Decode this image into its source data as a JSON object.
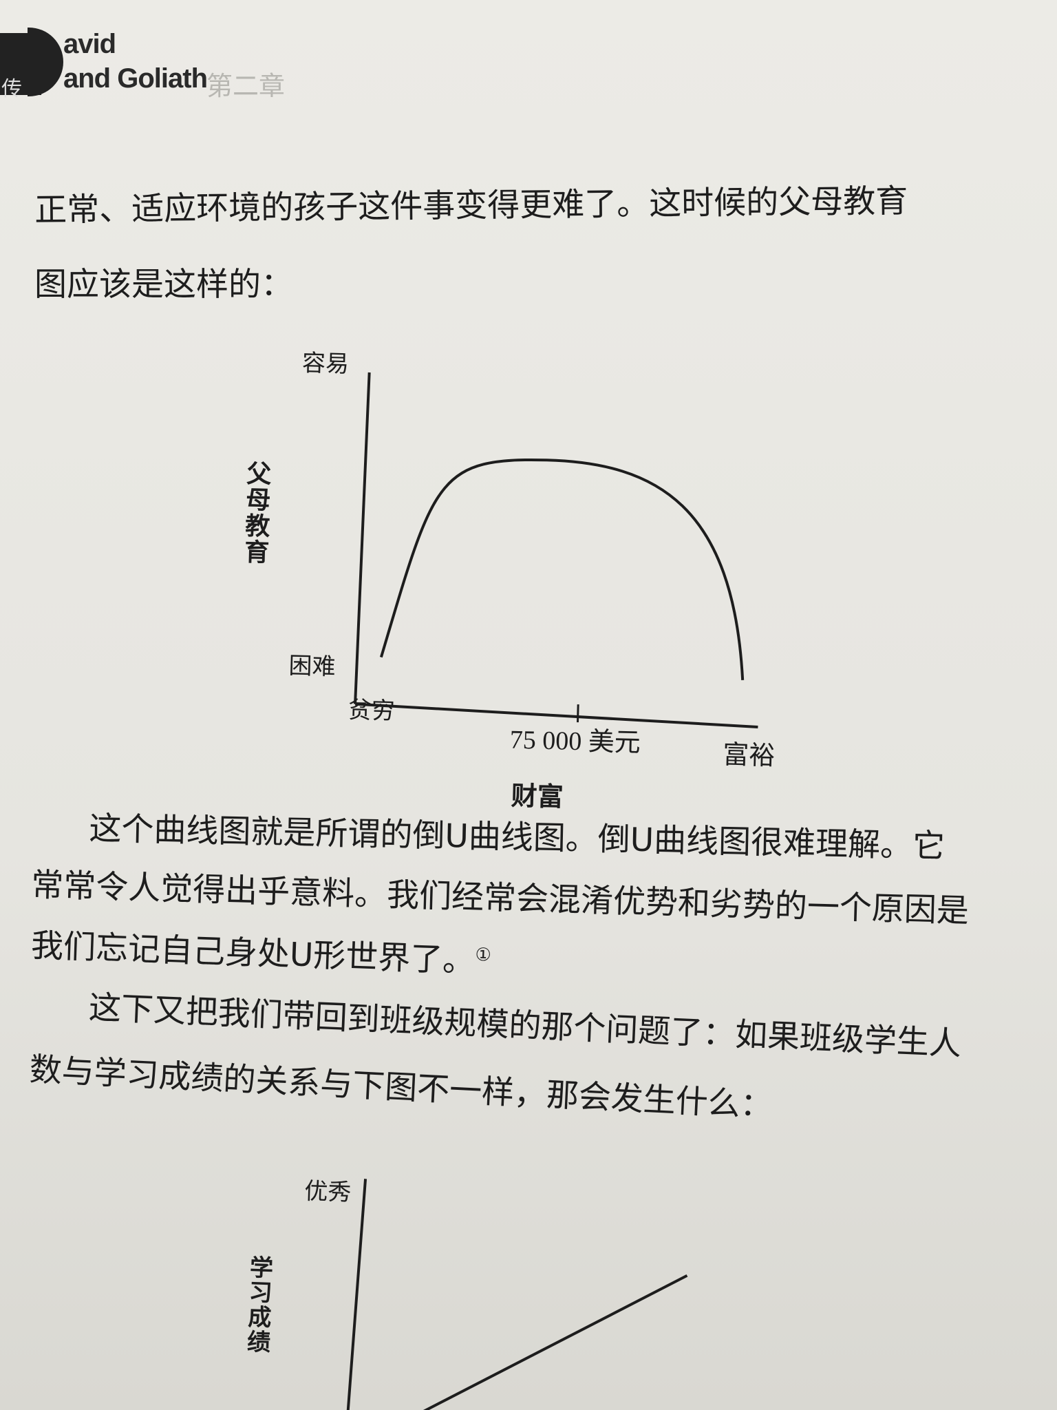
{
  "header": {
    "side_char": "传",
    "title_line1": "avid",
    "title_line2": "and Goliath",
    "chapter": "第二章"
  },
  "body": {
    "para1_line1": "正常、适应环境的孩子这件事变得更难了。这时候的父母教育",
    "para1_line2": "图应该是这样的：",
    "para2_line1": "这个曲线图就是所谓的倒U曲线图。倒U曲线图很难理解。它",
    "para2_line2": "常常令人觉得出乎意料。我们经常会混淆优势和劣势的一个原因是",
    "para2_line3": "我们忘记自己身处U形世界了。",
    "para2_footnote": "①",
    "para3_line1": "这下又把我们带回到班级规模的那个问题了：如果班级学生人",
    "para3_line2": "数与学习成绩的关系与下图不一样，那会发生什么："
  },
  "chart_data": [
    {
      "type": "line",
      "shape": "inverted-u",
      "ylabel": "父母教育",
      "xlabel": "财富",
      "y_tick_labels": [
        "困难",
        "容易"
      ],
      "x_tick_labels": [
        "贫穷",
        "75 000 美元",
        "富裕"
      ],
      "x": [
        0,
        0.5,
        1
      ],
      "series": [
        {
          "values": [
            0.1,
            0.85,
            0.05
          ]
        }
      ]
    },
    {
      "type": "line",
      "shape": "increasing",
      "ylabel": "学习成绩",
      "y_tick_labels": [
        "优秀"
      ],
      "series": [
        {
          "values_description_points": [
            [
              0,
              0
            ],
            [
              1,
              0.7
            ]
          ]
        }
      ]
    }
  ]
}
